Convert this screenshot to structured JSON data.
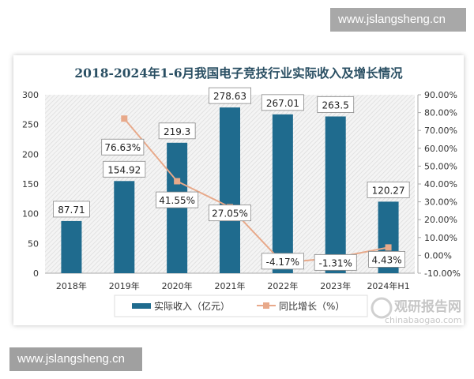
{
  "watermarks": {
    "top": "www.jslangsheng.cn",
    "bottom": "www.jslangsheng.cn"
  },
  "logo": {
    "name": "观研报告网",
    "url": "chinabaogao.com"
  },
  "chart_data": {
    "type": "bar+line",
    "title": "2018-2024年1-6月我国电子竞技行业实际收入及增长情况",
    "categories": [
      "2018年",
      "2019年",
      "2020年",
      "2021年",
      "2022年",
      "2023年",
      "2024年H1"
    ],
    "series": [
      {
        "name": "实际收入（亿元）",
        "type": "bar",
        "axis": "left",
        "color": "#1f6b8e",
        "values": [
          87.71,
          154.92,
          219.3,
          278.63,
          267.01,
          263.5,
          120.27
        ],
        "labels": [
          "87.71",
          "154.92",
          "219.3",
          "278.63",
          "267.01",
          "263.5",
          "120.27"
        ]
      },
      {
        "name": "同比增长（%）",
        "type": "line",
        "axis": "right",
        "color": "#e8a98a",
        "values": [
          null,
          76.63,
          41.55,
          27.05,
          -4.17,
          -1.31,
          4.43
        ],
        "labels": [
          "",
          "76.63%",
          "41.55%",
          "27.05%",
          "-4.17%",
          "-1.31%",
          "4.43%"
        ]
      }
    ],
    "left_axis": {
      "ylim": [
        0,
        300
      ],
      "ticks": [
        "0",
        "50",
        "100",
        "150",
        "200",
        "250",
        "300"
      ]
    },
    "right_axis": {
      "ylim": [
        -10,
        90
      ],
      "ticks": [
        "-10.00%",
        "0.00%",
        "10.00%",
        "20.00%",
        "30.00%",
        "40.00%",
        "50.00%",
        "60.00%",
        "70.00%",
        "80.00%",
        "90.00%"
      ]
    },
    "legend": "bottom",
    "grid": false
  }
}
